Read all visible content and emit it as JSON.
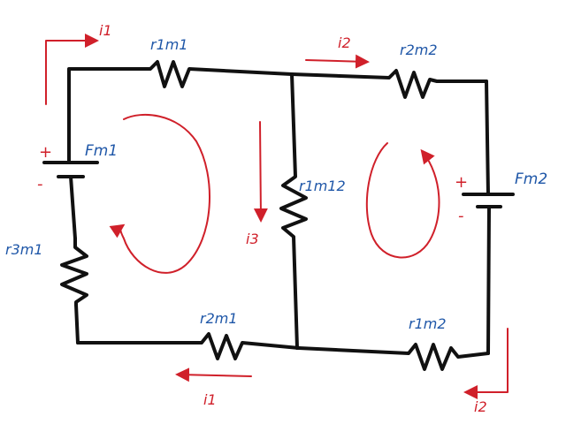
{
  "labels": {
    "i1_top": "i1",
    "i1_bottom": "i1",
    "i2_top": "i2",
    "i2_bottom": "i2",
    "i3": "i3",
    "r1m1": "r1m1",
    "r2m1": "r2m1",
    "r3m1": "r3m1",
    "r1m12": "r1m12",
    "r1m2": "r1m2",
    "r2m2": "r2m2",
    "Fm1": "Fm1",
    "Fm2": "Fm2",
    "plus": "+",
    "minus": "-"
  },
  "colors": {
    "wire": "#111111",
    "label_blue": "#1f57a8",
    "annotation_red": "#d0202a"
  }
}
